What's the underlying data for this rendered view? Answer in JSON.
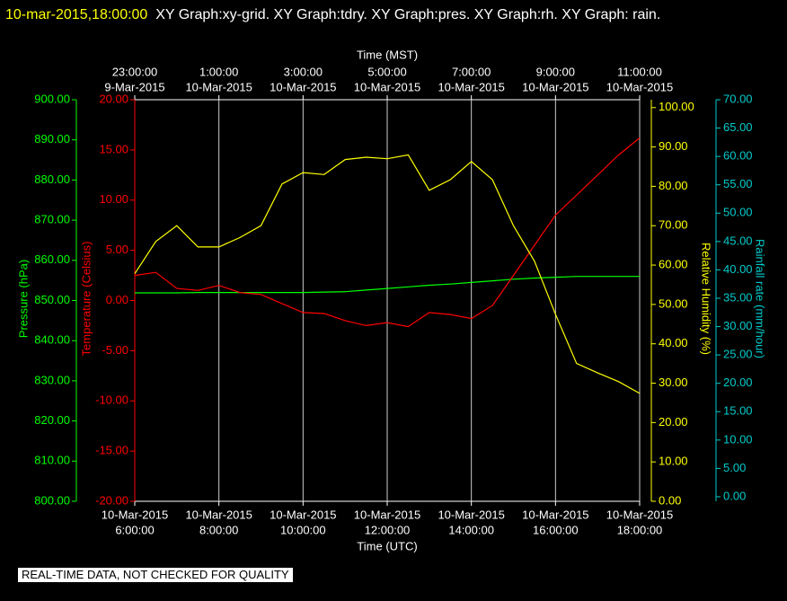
{
  "chart_data": {
    "type": "line",
    "title": "10-mar-2015,18:00:00",
    "subtitle": "XY Graph:xy-grid.  XY Graph:tdry.  XY Graph:pres.  XY Graph:rh.  XY Graph: rain.",
    "footer": "REAL-TIME DATA, NOT CHECKED FOR QUALITY",
    "xlabel": "Time (UTC)",
    "x2label": "Time (MST)",
    "xlim": [
      6,
      18
    ],
    "grid": true,
    "xticks": [
      {
        "value": 6,
        "label": [
          "10-Mar-2015",
          "6:00:00"
        ]
      },
      {
        "value": 8,
        "label": [
          "10-Mar-2015",
          "8:00:00"
        ]
      },
      {
        "value": 10,
        "label": [
          "10-Mar-2015",
          "10:00:00"
        ]
      },
      {
        "value": 12,
        "label": [
          "10-Mar-2015",
          "12:00:00"
        ]
      },
      {
        "value": 14,
        "label": [
          "10-Mar-2015",
          "14:00:00"
        ]
      },
      {
        "value": 16,
        "label": [
          "10-Mar-2015",
          "16:00:00"
        ]
      },
      {
        "value": 18,
        "label": [
          "10-Mar-2015",
          "18:00:00"
        ]
      }
    ],
    "x2ticks": [
      {
        "value": 6,
        "label": [
          "23:00:00",
          "9-Mar-2015"
        ]
      },
      {
        "value": 8,
        "label": [
          "1:00:00",
          "10-Mar-2015"
        ]
      },
      {
        "value": 10,
        "label": [
          "3:00:00",
          "10-Mar-2015"
        ]
      },
      {
        "value": 12,
        "label": [
          "5:00:00",
          "10-Mar-2015"
        ]
      },
      {
        "value": 14,
        "label": [
          "7:00:00",
          "10-Mar-2015"
        ]
      },
      {
        "value": 16,
        "label": [
          "9:00:00",
          "10-Mar-2015"
        ]
      },
      {
        "value": 18,
        "label": [
          "11:00:00",
          "10-Mar-2015"
        ]
      }
    ],
    "y_axes": [
      {
        "label": "Pressure (hPa)",
        "color": "#00ff00",
        "lim": [
          800,
          900
        ],
        "side": "left",
        "ticks": [
          {
            "value": 800,
            "label": "800.00"
          },
          {
            "value": 810,
            "label": "810.00"
          },
          {
            "value": 820,
            "label": "820.00"
          },
          {
            "value": 830,
            "label": "830.00"
          },
          {
            "value": 840,
            "label": "840.00"
          },
          {
            "value": 850,
            "label": "850.00"
          },
          {
            "value": 860,
            "label": "860.00"
          },
          {
            "value": 870,
            "label": "870.00"
          },
          {
            "value": 880,
            "label": "880.00"
          },
          {
            "value": 890,
            "label": "890.00"
          },
          {
            "value": 900,
            "label": "900.00"
          }
        ]
      },
      {
        "label": "Temperature (Celsius)",
        "color": "#ff0000",
        "lim": [
          -20,
          20
        ],
        "side": "left",
        "ticks": [
          {
            "value": -20,
            "label": "-20.00"
          },
          {
            "value": -15,
            "label": "-15.00"
          },
          {
            "value": -10,
            "label": "-10.00"
          },
          {
            "value": -5,
            "label": "-5.00"
          },
          {
            "value": 0,
            "label": "0.00"
          },
          {
            "value": 5,
            "label": "5.00"
          },
          {
            "value": 10,
            "label": "10.00"
          },
          {
            "value": 15,
            "label": "15.00"
          },
          {
            "value": 20,
            "label": "20.00"
          }
        ]
      },
      {
        "label": "Relative Humidity (%)",
        "color": "#ffff00",
        "lim": [
          0,
          102
        ],
        "side": "right",
        "ticks": [
          {
            "value": 0,
            "label": "0.00"
          },
          {
            "value": 10,
            "label": "10.00"
          },
          {
            "value": 20,
            "label": "20.00"
          },
          {
            "value": 30,
            "label": "30.00"
          },
          {
            "value": 40,
            "label": "40.00"
          },
          {
            "value": 50,
            "label": "50.00"
          },
          {
            "value": 60,
            "label": "60.00"
          },
          {
            "value": 70,
            "label": "70.00"
          },
          {
            "value": 80,
            "label": "80.00"
          },
          {
            "value": 90,
            "label": "90.00"
          },
          {
            "value": 100,
            "label": "100.00"
          }
        ]
      },
      {
        "label": "Rainfall rate (mm/hour)",
        "color": "#00cccc",
        "lim": [
          -0.8,
          70
        ],
        "side": "right",
        "ticks": [
          {
            "value": 0,
            "label": "0.00"
          },
          {
            "value": 5,
            "label": "5.00"
          },
          {
            "value": 10,
            "label": "10.00"
          },
          {
            "value": 15,
            "label": "15.00"
          },
          {
            "value": 20,
            "label": "20.00"
          },
          {
            "value": 25,
            "label": "25.00"
          },
          {
            "value": 30,
            "label": "30.00"
          },
          {
            "value": 35,
            "label": "35.00"
          },
          {
            "value": 40,
            "label": "40.00"
          },
          {
            "value": 45,
            "label": "45.00"
          },
          {
            "value": 50,
            "label": "50.00"
          },
          {
            "value": 55,
            "label": "55.00"
          },
          {
            "value": 60,
            "label": "60.00"
          },
          {
            "value": 65,
            "label": "65.00"
          },
          {
            "value": 70,
            "label": "70.00"
          }
        ]
      }
    ],
    "x": [
      6,
      6.5,
      7,
      7.5,
      8,
      8.5,
      9,
      9.5,
      10,
      10.5,
      11,
      11.5,
      12,
      12.5,
      13,
      13.5,
      14,
      14.5,
      15,
      15.5,
      16,
      16.5,
      17,
      17.5,
      18
    ],
    "series": [
      {
        "name": "pres",
        "color": "#00ff00",
        "axis": 0,
        "values": [
          851.9,
          851.9,
          851.9,
          852,
          852,
          852,
          852,
          852,
          852,
          852.1,
          852.2,
          852.6,
          853,
          853.4,
          853.8,
          854.1,
          854.5,
          854.9,
          855.3,
          855.6,
          855.8,
          856,
          856,
          856,
          856
        ]
      },
      {
        "name": "tdry",
        "color": "#ff0000",
        "axis": 1,
        "values": [
          2.5,
          2.8,
          1.2,
          1.0,
          1.5,
          0.8,
          0.6,
          -0.3,
          -1.2,
          -1.3,
          -2.0,
          -2.5,
          -2.2,
          -2.6,
          -1.2,
          -1.4,
          -1.8,
          -0.5,
          2.5,
          5.5,
          8.5,
          10.5,
          12.5,
          14.5,
          16.2
        ]
      },
      {
        "name": "rh",
        "color": "#ffff00",
        "axis": 2,
        "values": [
          57.8,
          66,
          70,
          64.6,
          64.6,
          67,
          70,
          80.6,
          83.5,
          83,
          86.8,
          87.4,
          87,
          88,
          79,
          81.7,
          86.3,
          81.7,
          70,
          61,
          47.5,
          35,
          32.6,
          30.4,
          27.4
        ]
      }
    ]
  }
}
